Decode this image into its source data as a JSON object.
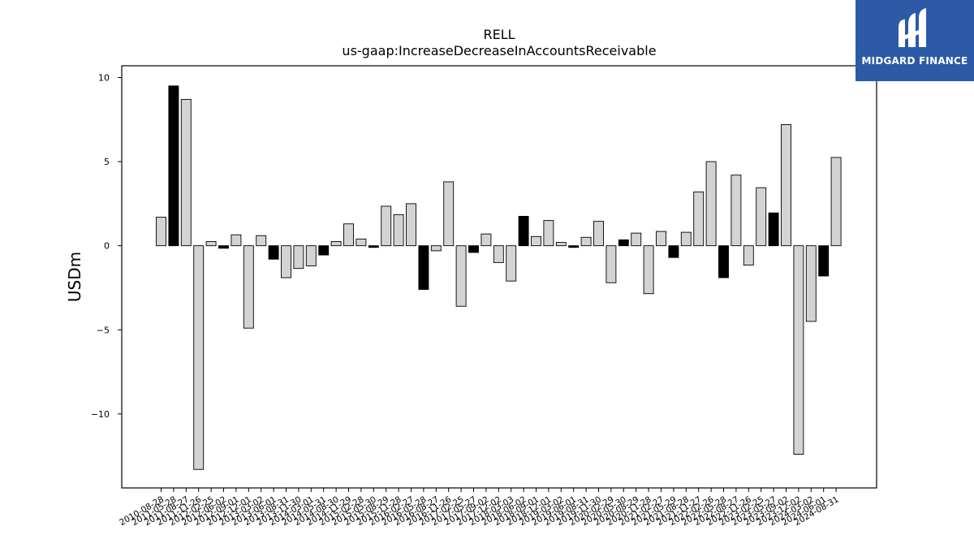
{
  "chart_data": {
    "type": "bar",
    "title": "RELL",
    "subtitle": "us-gaap:IncreaseDecreaseInAccountsReceivable",
    "xlabel": "",
    "ylabel": "USDm",
    "ylim": [
      -14.4,
      10.7
    ],
    "yticks": [
      10,
      5,
      0,
      -5,
      -10
    ],
    "ytick_labels": [
      "10",
      "5",
      "0",
      "−5",
      "−10"
    ],
    "grid": false,
    "colors": {
      "normal": "#d3d3d3",
      "highlight": "#000000",
      "edge": "#000000"
    },
    "bars": [
      {
        "date": "2010-08-28",
        "value": 1.7,
        "highlight": false
      },
      {
        "date": "2011-05-28",
        "value": 9.5,
        "highlight": true
      },
      {
        "date": "2011-08-27",
        "value": 8.7,
        "highlight": false
      },
      {
        "date": "2011-11-26",
        "value": -13.3,
        "highlight": false
      },
      {
        "date": "2012-02-25",
        "value": 0.25,
        "highlight": false
      },
      {
        "date": "2012-06-02",
        "value": -0.15,
        "highlight": true
      },
      {
        "date": "2012-09-01",
        "value": 0.65,
        "highlight": false
      },
      {
        "date": "2012-12-01",
        "value": -4.9,
        "highlight": false
      },
      {
        "date": "2013-03-02",
        "value": 0.6,
        "highlight": false
      },
      {
        "date": "2013-06-01",
        "value": -0.8,
        "highlight": true
      },
      {
        "date": "2013-08-31",
        "value": -1.9,
        "highlight": false
      },
      {
        "date": "2013-11-30",
        "value": -1.35,
        "highlight": false
      },
      {
        "date": "2014-03-01",
        "value": -1.2,
        "highlight": false
      },
      {
        "date": "2014-05-31",
        "value": -0.55,
        "highlight": true
      },
      {
        "date": "2014-08-30",
        "value": 0.25,
        "highlight": false
      },
      {
        "date": "2014-11-29",
        "value": 1.3,
        "highlight": false
      },
      {
        "date": "2015-02-28",
        "value": 0.4,
        "highlight": false
      },
      {
        "date": "2015-05-30",
        "value": -0.1,
        "highlight": true
      },
      {
        "date": "2015-08-29",
        "value": 2.35,
        "highlight": false
      },
      {
        "date": "2015-11-28",
        "value": 1.85,
        "highlight": false
      },
      {
        "date": "2016-02-27",
        "value": 2.5,
        "highlight": false
      },
      {
        "date": "2016-05-28",
        "value": -2.6,
        "highlight": true
      },
      {
        "date": "2016-08-27",
        "value": -0.3,
        "highlight": false
      },
      {
        "date": "2016-11-26",
        "value": 3.8,
        "highlight": false
      },
      {
        "date": "2017-02-25",
        "value": -3.6,
        "highlight": false
      },
      {
        "date": "2017-05-27",
        "value": -0.4,
        "highlight": true
      },
      {
        "date": "2017-09-02",
        "value": 0.7,
        "highlight": false
      },
      {
        "date": "2017-12-02",
        "value": -1.0,
        "highlight": false
      },
      {
        "date": "2018-03-03",
        "value": -2.1,
        "highlight": false
      },
      {
        "date": "2018-06-02",
        "value": 1.75,
        "highlight": true
      },
      {
        "date": "2018-09-01",
        "value": 0.55,
        "highlight": false
      },
      {
        "date": "2018-12-01",
        "value": 1.5,
        "highlight": false
      },
      {
        "date": "2019-03-02",
        "value": 0.2,
        "highlight": false
      },
      {
        "date": "2019-06-01",
        "value": -0.1,
        "highlight": true
      },
      {
        "date": "2019-08-31",
        "value": 0.5,
        "highlight": false
      },
      {
        "date": "2019-11-30",
        "value": 1.45,
        "highlight": false
      },
      {
        "date": "2020-02-29",
        "value": -2.2,
        "highlight": false
      },
      {
        "date": "2020-05-30",
        "value": 0.35,
        "highlight": true
      },
      {
        "date": "2020-08-29",
        "value": 0.75,
        "highlight": false
      },
      {
        "date": "2020-11-28",
        "value": -2.85,
        "highlight": false
      },
      {
        "date": "2021-02-27",
        "value": 0.85,
        "highlight": false
      },
      {
        "date": "2021-05-29",
        "value": -0.7,
        "highlight": true
      },
      {
        "date": "2021-08-28",
        "value": 0.8,
        "highlight": false
      },
      {
        "date": "2021-11-27",
        "value": 3.2,
        "highlight": false
      },
      {
        "date": "2022-02-26",
        "value": 5.0,
        "highlight": false
      },
      {
        "date": "2022-05-28",
        "value": -1.9,
        "highlight": true
      },
      {
        "date": "2022-08-27",
        "value": 4.2,
        "highlight": false
      },
      {
        "date": "2022-11-26",
        "value": -1.15,
        "highlight": false
      },
      {
        "date": "2023-02-25",
        "value": 3.45,
        "highlight": false
      },
      {
        "date": "2023-05-27",
        "value": 1.95,
        "highlight": true
      },
      {
        "date": "2023-09-02",
        "value": 7.2,
        "highlight": false
      },
      {
        "date": "2023-12-02",
        "value": -12.4,
        "highlight": false
      },
      {
        "date": "2024-03-02",
        "value": -4.5,
        "highlight": false
      },
      {
        "date": "2024-06-01",
        "value": -1.8,
        "highlight": true
      },
      {
        "date": "2024-08-31",
        "value": 5.25,
        "highlight": false
      }
    ],
    "xtick_labels": [
      "2010-08-28",
      "2011-05-28",
      "2011-08-27",
      "2011-11-26",
      "2012-02-25",
      "2012-06-02",
      "2012-09-01",
      "2012-12-01",
      "2013-03-02",
      "2013-06-01",
      "2013-08-31",
      "2013-11-30",
      "2014-03-01",
      "2014-05-31",
      "2014-08-30",
      "2014-11-29",
      "2015-02-28",
      "2015-05-30",
      "2015-08-29",
      "2015-11-28",
      "2016-02-27",
      "2016-05-28",
      "2016-08-27",
      "2016-11-26",
      "2017-02-25",
      "2017-05-27",
      "2017-09-02",
      "2017-12-02",
      "2018-03-03",
      "2018-06-02",
      "2018-09-01",
      "2018-12-01",
      "2019-03-02",
      "2019-06-01",
      "2019-08-31",
      "2019-11-30",
      "2020-02-29",
      "2020-05-30",
      "2020-08-29",
      "2020-11-28",
      "2021-02-27",
      "2021-05-29",
      "2021-08-28",
      "2021-11-27",
      "2022-02-26",
      "2022-05-28",
      "2022-08-27",
      "2022-11-26",
      "2023-02-25",
      "2023-05-27",
      "2023-09-02",
      "2023-12-02",
      "2024-03-02",
      "2024-06-01",
      "2024-08-31"
    ]
  },
  "brand": {
    "name": "MIDGARD FINANCE",
    "background": "#2c5aa6",
    "text_color": "#ffffff"
  }
}
